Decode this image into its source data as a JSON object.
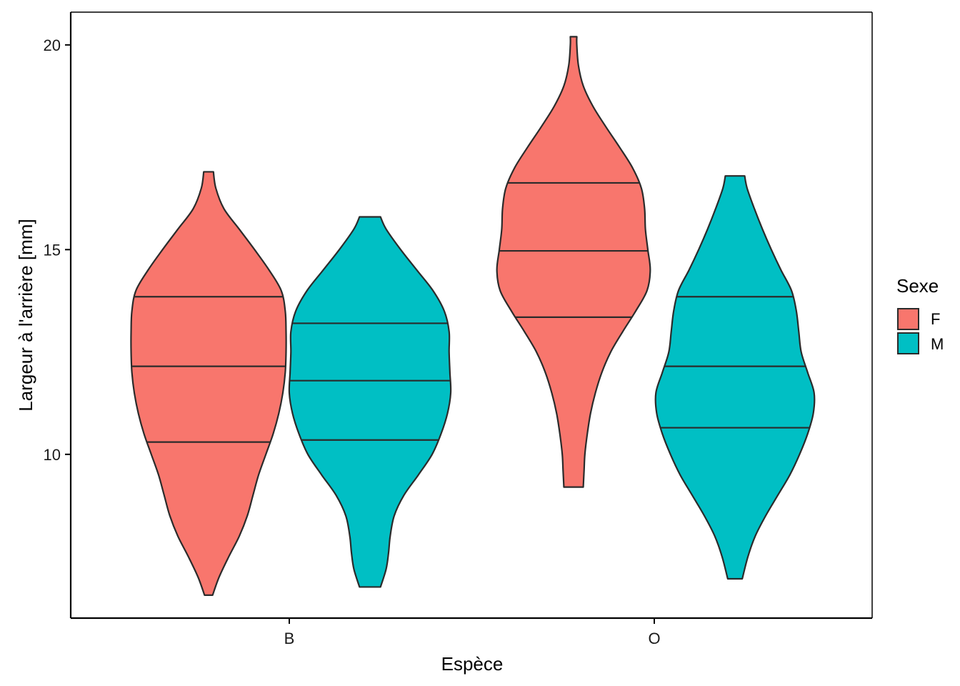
{
  "chart_data": {
    "type": "violin",
    "xlabel": "Espèce",
    "ylabel": "Largeur à l'arrière  [mm]",
    "ylim": [
      6.0,
      20.8
    ],
    "y_ticks": [
      10,
      15,
      20
    ],
    "categories": [
      "B",
      "O"
    ],
    "groups": [
      "F",
      "M"
    ],
    "colors": {
      "F": "#F8766D",
      "M": "#00BFC4",
      "outline": "#2b2b2b"
    },
    "legend": {
      "title": "Sexe",
      "entries": [
        "F",
        "M"
      ],
      "position": "right"
    },
    "grid": false,
    "violins": [
      {
        "category": "B",
        "group": "F",
        "min": 6.56,
        "max": 16.9,
        "quantiles": [
          10.3,
          12.15,
          13.85
        ],
        "density": [
          [
            6.56,
            0.05
          ],
          [
            7.0,
            0.13
          ],
          [
            7.5,
            0.25
          ],
          [
            8.0,
            0.38
          ],
          [
            8.5,
            0.48
          ],
          [
            9.0,
            0.55
          ],
          [
            9.5,
            0.62
          ],
          [
            10.0,
            0.71
          ],
          [
            10.5,
            0.8
          ],
          [
            11.0,
            0.87
          ],
          [
            11.5,
            0.92
          ],
          [
            12.0,
            0.95
          ],
          [
            12.5,
            0.96
          ],
          [
            13.0,
            0.96
          ],
          [
            13.5,
            0.95
          ],
          [
            14.0,
            0.9
          ],
          [
            14.5,
            0.75
          ],
          [
            15.0,
            0.57
          ],
          [
            15.5,
            0.38
          ],
          [
            16.0,
            0.19
          ],
          [
            16.5,
            0.09
          ],
          [
            16.9,
            0.06
          ]
        ]
      },
      {
        "category": "B",
        "group": "M",
        "min": 6.76,
        "max": 15.8,
        "quantiles": [
          10.35,
          11.8,
          13.2
        ],
        "density": [
          [
            6.76,
            0.13
          ],
          [
            7.2,
            0.2
          ],
          [
            7.6,
            0.23
          ],
          [
            8.0,
            0.25
          ],
          [
            8.5,
            0.3
          ],
          [
            9.0,
            0.42
          ],
          [
            9.5,
            0.6
          ],
          [
            10.0,
            0.77
          ],
          [
            10.5,
            0.88
          ],
          [
            11.0,
            0.96
          ],
          [
            11.5,
            1.0
          ],
          [
            12.0,
            0.99
          ],
          [
            12.5,
            0.98
          ],
          [
            13.0,
            0.98
          ],
          [
            13.5,
            0.92
          ],
          [
            14.0,
            0.78
          ],
          [
            14.5,
            0.58
          ],
          [
            15.0,
            0.38
          ],
          [
            15.5,
            0.2
          ],
          [
            15.8,
            0.13
          ]
        ]
      },
      {
        "category": "O",
        "group": "F",
        "min": 9.2,
        "max": 20.2,
        "quantiles": [
          13.35,
          14.97,
          16.63
        ],
        "density": [
          [
            9.2,
            0.12
          ],
          [
            9.6,
            0.13
          ],
          [
            10.0,
            0.14
          ],
          [
            10.5,
            0.17
          ],
          [
            11.0,
            0.21
          ],
          [
            11.5,
            0.27
          ],
          [
            12.0,
            0.35
          ],
          [
            12.5,
            0.46
          ],
          [
            13.0,
            0.61
          ],
          [
            13.5,
            0.77
          ],
          [
            14.0,
            0.91
          ],
          [
            14.5,
            0.95
          ],
          [
            15.0,
            0.92
          ],
          [
            15.5,
            0.89
          ],
          [
            16.0,
            0.88
          ],
          [
            16.5,
            0.84
          ],
          [
            17.0,
            0.73
          ],
          [
            17.5,
            0.57
          ],
          [
            18.0,
            0.4
          ],
          [
            18.5,
            0.24
          ],
          [
            19.0,
            0.12
          ],
          [
            19.5,
            0.06
          ],
          [
            20.0,
            0.04
          ],
          [
            20.2,
            0.04
          ]
        ]
      },
      {
        "category": "O",
        "group": "M",
        "min": 6.96,
        "max": 16.8,
        "quantiles": [
          10.65,
          12.15,
          13.85
        ],
        "density": [
          [
            6.96,
            0.09
          ],
          [
            7.5,
            0.16
          ],
          [
            8.0,
            0.25
          ],
          [
            8.5,
            0.38
          ],
          [
            9.0,
            0.53
          ],
          [
            9.5,
            0.68
          ],
          [
            10.0,
            0.8
          ],
          [
            10.5,
            0.9
          ],
          [
            11.0,
            0.97
          ],
          [
            11.5,
            0.98
          ],
          [
            12.0,
            0.9
          ],
          [
            12.5,
            0.82
          ],
          [
            13.0,
            0.79
          ],
          [
            13.5,
            0.76
          ],
          [
            14.0,
            0.7
          ],
          [
            14.5,
            0.57
          ],
          [
            15.0,
            0.45
          ],
          [
            15.5,
            0.34
          ],
          [
            16.0,
            0.24
          ],
          [
            16.5,
            0.15
          ],
          [
            16.8,
            0.12
          ]
        ]
      }
    ]
  }
}
